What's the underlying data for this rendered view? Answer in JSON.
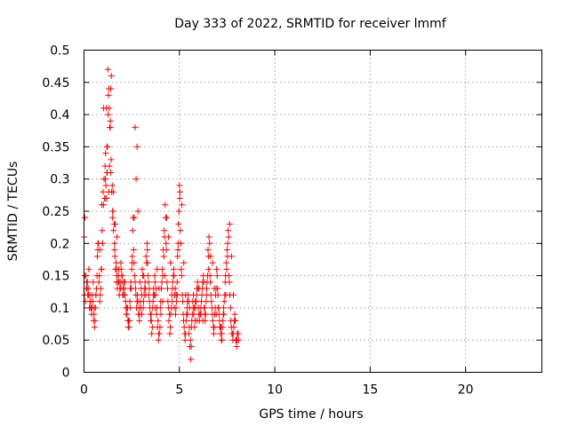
{
  "chart_data": {
    "type": "scatter",
    "title": "Day 333 of 2022, SRMTID for receiver lmmf",
    "xlabel": "GPS time / hours",
    "ylabel": "SRMTID / TECUs",
    "xlim": [
      0,
      24
    ],
    "ylim": [
      0,
      0.5
    ],
    "grid": true,
    "marker": "+",
    "marker_color": "#ff0000",
    "xticks": [
      0,
      5,
      10,
      15,
      20
    ],
    "xtick_labels": [
      "0",
      "5",
      "10",
      "15",
      "20"
    ],
    "yticks": [
      0,
      0.05,
      0.1,
      0.15,
      0.2,
      0.25,
      0.3,
      0.35,
      0.4,
      0.45,
      0.5
    ],
    "ytick_labels": [
      "0",
      "0.05",
      "0.1",
      "0.15",
      "0.2",
      "0.25",
      "0.3",
      "0.35",
      "0.4",
      "0.45",
      "0.5"
    ],
    "series": [
      {
        "name": "SRMTID",
        "x": [
          0.0,
          0.05,
          0.1,
          0.15,
          0.2,
          0.25,
          0.3,
          0.35,
          0.4,
          0.45,
          0.5,
          0.55,
          0.6,
          0.65,
          0.7,
          0.75,
          0.8,
          0.85,
          0.9,
          0.95,
          1.0,
          1.05,
          1.1,
          1.15,
          1.2,
          1.25,
          1.3,
          1.35,
          1.4,
          1.45,
          1.5,
          1.55,
          1.6,
          1.65,
          1.7,
          1.75,
          1.8,
          1.85,
          1.9,
          1.95,
          2.0,
          2.05,
          2.1,
          2.15,
          2.2,
          2.25,
          2.3,
          2.35,
          2.4,
          2.45,
          2.5,
          2.55,
          2.6,
          2.65,
          2.7,
          2.75,
          2.8,
          2.85,
          2.9,
          2.95,
          3.0,
          3.05,
          3.1,
          3.15,
          3.2,
          3.25,
          3.3,
          3.35,
          3.4,
          3.45,
          3.5,
          3.55,
          3.6,
          3.65,
          3.7,
          3.75,
          3.8,
          3.85,
          3.9,
          3.95,
          4.0,
          4.05,
          4.1,
          4.15,
          4.2,
          4.25,
          4.3,
          4.35,
          4.4,
          4.45,
          4.5,
          4.55,
          4.6,
          4.65,
          4.7,
          4.75,
          4.8,
          4.85,
          4.9,
          4.95,
          5.0,
          5.05,
          5.1,
          5.15,
          5.2,
          5.25,
          5.3,
          5.35,
          5.4,
          5.45,
          5.5,
          5.55,
          5.6,
          5.65,
          5.7,
          5.75,
          5.8,
          5.85,
          5.9,
          5.95,
          6.0,
          6.05,
          6.1,
          6.15,
          6.2,
          6.25,
          6.3,
          6.35,
          6.4,
          6.45,
          6.5,
          6.55,
          6.6,
          6.65,
          6.7,
          6.75,
          6.8,
          6.85,
          6.9,
          6.95,
          7.0,
          7.05,
          7.1,
          7.15,
          7.2,
          7.25,
          7.3,
          7.35,
          7.4,
          7.45,
          7.5,
          7.55,
          7.6,
          7.65,
          7.7,
          7.75,
          7.8,
          7.85,
          7.9,
          7.95,
          8.0,
          8.05,
          8.1,
          0.02,
          0.08,
          0.12,
          0.18,
          0.22,
          0.28,
          0.32,
          0.38,
          0.42,
          0.48,
          0.52,
          0.58,
          0.62,
          0.68,
          0.72,
          0.78,
          0.82,
          0.88,
          0.92,
          0.98,
          1.02,
          1.08,
          1.12,
          1.18,
          1.22,
          1.28,
          1.32,
          1.38,
          1.42,
          1.48,
          1.52,
          1.58,
          1.62,
          1.68,
          1.72,
          1.78,
          1.82,
          1.88,
          1.92,
          1.98,
          2.02,
          2.08,
          2.12,
          2.18,
          2.22,
          2.28,
          2.32,
          2.38,
          2.42,
          2.48,
          2.52,
          2.58,
          2.62,
          2.68,
          2.72,
          2.78,
          2.82,
          2.88,
          2.92,
          2.98,
          3.02,
          3.08,
          3.12,
          3.18,
          3.22,
          3.28,
          3.32,
          3.38,
          3.42,
          3.48,
          3.52,
          3.58,
          3.62,
          3.68,
          3.72,
          3.78,
          3.82,
          3.88,
          3.92,
          3.98,
          4.02,
          4.08,
          4.12,
          4.18,
          4.22,
          4.28,
          4.32,
          4.38,
          4.42,
          4.48,
          4.52,
          4.58,
          4.62,
          4.68,
          4.72,
          4.78,
          4.82,
          4.88,
          4.92,
          4.98,
          5.02,
          5.08,
          5.12,
          5.18,
          5.22,
          5.28,
          5.32,
          5.38,
          5.42,
          5.48,
          5.52,
          5.58,
          5.62,
          5.68,
          5.72,
          5.78,
          5.82,
          5.88,
          5.92,
          5.98,
          6.02,
          6.08,
          6.12,
          6.18,
          6.22,
          6.28,
          6.32,
          6.38,
          6.42,
          6.48,
          6.52,
          6.58,
          6.62,
          6.68,
          6.72,
          6.78,
          6.82,
          6.88,
          6.92,
          6.98,
          7.02,
          7.08,
          7.12,
          7.18,
          7.22,
          7.28,
          7.32,
          7.38,
          7.42,
          7.48,
          7.52,
          7.58,
          7.62,
          7.68,
          7.72,
          7.78,
          7.82,
          7.88,
          7.92,
          7.98,
          8.02,
          8.08,
          0.03,
          0.13,
          0.23,
          0.33,
          0.43,
          0.53,
          0.63,
          0.73,
          0.83,
          0.93,
          1.03,
          1.1,
          1.13,
          1.17,
          1.2,
          1.23,
          1.27,
          1.3,
          1.33,
          1.37,
          1.4,
          1.43,
          1.5,
          1.53,
          1.6,
          1.63,
          1.7,
          1.73,
          1.83,
          1.93,
          2.03,
          2.13,
          2.23,
          2.33,
          2.43,
          2.53,
          2.63,
          2.68,
          2.73,
          2.78,
          2.83,
          2.93,
          3.03,
          3.13,
          3.23,
          3.33,
          3.43,
          3.53,
          3.63,
          3.73,
          3.83,
          3.93,
          4.03,
          4.13,
          4.23,
          4.33,
          4.43,
          4.53,
          4.63,
          4.73,
          4.83,
          4.88,
          4.93,
          4.98,
          5.03,
          5.13,
          5.23,
          5.33,
          5.43,
          5.53,
          5.63,
          5.73,
          5.83,
          5.93,
          6.03,
          6.13,
          6.23,
          6.33,
          6.43,
          6.53,
          6.63,
          6.73,
          6.83,
          6.93,
          7.03,
          7.13,
          7.23,
          7.33,
          7.43,
          7.53,
          7.63,
          7.73,
          7.83,
          7.93,
          8.03
        ],
        "y": [
          0.21,
          0.24,
          0.15,
          0.13,
          0.12,
          0.16,
          0.12,
          0.1,
          0.09,
          0.11,
          0.08,
          0.07,
          0.1,
          0.13,
          0.18,
          0.2,
          0.15,
          0.12,
          0.16,
          0.22,
          0.28,
          0.3,
          0.32,
          0.29,
          0.35,
          0.47,
          0.44,
          0.38,
          0.31,
          0.28,
          0.24,
          0.22,
          0.19,
          0.16,
          0.14,
          0.13,
          0.15,
          0.12,
          0.14,
          0.16,
          0.15,
          0.13,
          0.14,
          0.12,
          0.1,
          0.09,
          0.08,
          0.07,
          0.11,
          0.14,
          0.16,
          0.22,
          0.19,
          0.15,
          0.13,
          0.1,
          0.12,
          0.09,
          0.08,
          0.11,
          0.13,
          0.16,
          0.1,
          0.12,
          0.14,
          0.18,
          0.2,
          0.15,
          0.12,
          0.1,
          0.08,
          0.06,
          0.1,
          0.13,
          0.15,
          0.12,
          0.09,
          0.07,
          0.05,
          0.06,
          0.1,
          0.13,
          0.16,
          0.19,
          0.22,
          0.26,
          0.2,
          0.14,
          0.11,
          0.08,
          0.06,
          0.09,
          0.12,
          0.14,
          0.16,
          0.12,
          0.09,
          0.11,
          0.18,
          0.23,
          0.29,
          0.22,
          0.16,
          0.12,
          0.09,
          0.07,
          0.05,
          0.08,
          0.1,
          0.12,
          0.06,
          0.04,
          0.02,
          0.08,
          0.11,
          0.09,
          0.07,
          0.1,
          0.12,
          0.14,
          0.1,
          0.08,
          0.09,
          0.11,
          0.13,
          0.15,
          0.1,
          0.08,
          0.11,
          0.14,
          0.19,
          0.21,
          0.15,
          0.12,
          0.1,
          0.08,
          0.06,
          0.09,
          0.12,
          0.16,
          0.13,
          0.1,
          0.08,
          0.06,
          0.05,
          0.07,
          0.09,
          0.11,
          0.14,
          0.17,
          0.19,
          0.22,
          0.15,
          0.12,
          0.08,
          0.06,
          0.05,
          0.07,
          0.09,
          0.05,
          0.04,
          0.06,
          0.05,
          0.12,
          0.11,
          0.13,
          0.14,
          0.13,
          0.1,
          0.11,
          0.1,
          0.12,
          0.14,
          0.09,
          0.08,
          0.12,
          0.15,
          0.19,
          0.14,
          0.11,
          0.13,
          0.16,
          0.2,
          0.26,
          0.27,
          0.3,
          0.27,
          0.31,
          0.43,
          0.41,
          0.39,
          0.33,
          0.29,
          0.25,
          0.23,
          0.18,
          0.17,
          0.15,
          0.14,
          0.16,
          0.13,
          0.13,
          0.15,
          0.14,
          0.12,
          0.13,
          0.11,
          0.09,
          0.1,
          0.07,
          0.08,
          0.1,
          0.13,
          0.17,
          0.24,
          0.17,
          0.14,
          0.12,
          0.11,
          0.11,
          0.1,
          0.09,
          0.1,
          0.12,
          0.15,
          0.11,
          0.13,
          0.13,
          0.17,
          0.19,
          0.14,
          0.13,
          0.09,
          0.09,
          0.07,
          0.11,
          0.12,
          0.14,
          0.13,
          0.1,
          0.08,
          0.06,
          0.07,
          0.11,
          0.14,
          0.15,
          0.18,
          0.21,
          0.24,
          0.19,
          0.13,
          0.1,
          0.09,
          0.07,
          0.1,
          0.11,
          0.15,
          0.15,
          0.13,
          0.1,
          0.12,
          0.19,
          0.25,
          0.27,
          0.2,
          0.15,
          0.11,
          0.08,
          0.06,
          0.06,
          0.09,
          0.11,
          0.11,
          0.07,
          0.05,
          0.04,
          0.09,
          0.1,
          0.1,
          0.08,
          0.11,
          0.13,
          0.13,
          0.09,
          0.09,
          0.1,
          0.12,
          0.14,
          0.14,
          0.09,
          0.09,
          0.12,
          0.15,
          0.18,
          0.2,
          0.14,
          0.11,
          0.09,
          0.07,
          0.07,
          0.1,
          0.13,
          0.15,
          0.12,
          0.09,
          0.07,
          0.07,
          0.06,
          0.08,
          0.1,
          0.12,
          0.15,
          0.16,
          0.18,
          0.21,
          0.14,
          0.1,
          0.07,
          0.06,
          0.06,
          0.08,
          0.08,
          0.05,
          0.05,
          0.06,
          0.15,
          0.14,
          0.12,
          0.11,
          0.1,
          0.1,
          0.12,
          0.2,
          0.19,
          0.26,
          0.41,
          0.27,
          0.34,
          0.41,
          0.31,
          0.35,
          0.4,
          0.28,
          0.32,
          0.38,
          0.44,
          0.46,
          0.25,
          0.28,
          0.2,
          0.23,
          0.16,
          0.21,
          0.14,
          0.17,
          0.12,
          0.14,
          0.1,
          0.08,
          0.13,
          0.18,
          0.24,
          0.38,
          0.3,
          0.35,
          0.25,
          0.14,
          0.09,
          0.15,
          0.12,
          0.17,
          0.11,
          0.08,
          0.12,
          0.1,
          0.16,
          0.13,
          0.09,
          0.11,
          0.15,
          0.24,
          0.21,
          0.17,
          0.13,
          0.1,
          0.12,
          0.14,
          0.2,
          0.25,
          0.28,
          0.26,
          0.17,
          0.12,
          0.09,
          0.1,
          0.07,
          0.12,
          0.11,
          0.08,
          0.13,
          0.09,
          0.08,
          0.1,
          0.13,
          0.16,
          0.18,
          0.17,
          0.13,
          0.09,
          0.1,
          0.07,
          0.05,
          0.09,
          0.12,
          0.2,
          0.23,
          0.18,
          0.12,
          0.08,
          0.06
        ]
      }
    ]
  }
}
